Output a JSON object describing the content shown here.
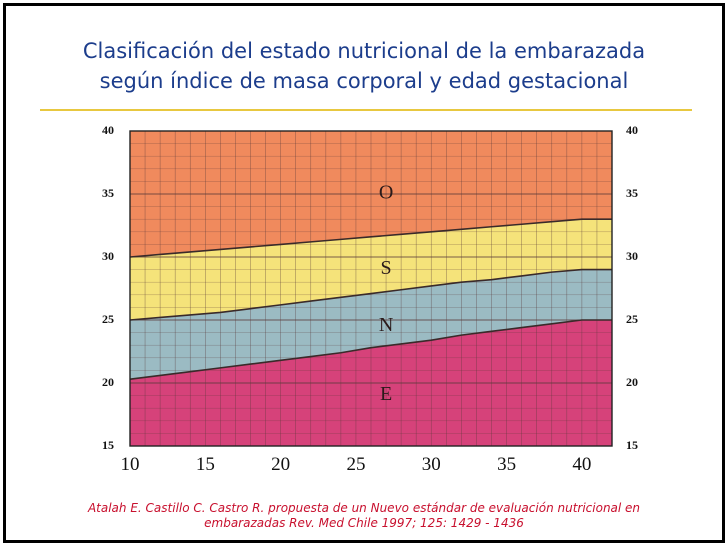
{
  "slide": {
    "title_line1": "Clasificación del estado nutricional de la embarazada",
    "title_line2": "según índice de masa corporal y edad gestacional",
    "citation_line1": "Atalah E. Castillo C. Castro R. propuesta de un Nuevo estándar de evaluación nutricional en",
    "citation_line2": "embarazadas Rev. Med Chile 1997; 125: 1429 - 1436"
  },
  "colors": {
    "title": "#1c3d8c",
    "citation": "#c8102e",
    "rule": "#e8c840",
    "zone_O": "#f08a5d",
    "zone_S": "#f5e37a",
    "zone_N": "#9bbbc3",
    "zone_E": "#d6427a"
  },
  "chart_data": {
    "type": "area",
    "x": [
      10,
      12,
      14,
      16,
      18,
      20,
      22,
      24,
      26,
      28,
      30,
      32,
      34,
      36,
      38,
      40,
      42
    ],
    "xlim": [
      10,
      42
    ],
    "ylim": [
      15,
      40
    ],
    "x_ticks": [
      "10",
      "15",
      "20",
      "25",
      "30",
      "35",
      "40"
    ],
    "y_ticks": [
      "15",
      "20",
      "25",
      "30",
      "35",
      "40"
    ],
    "grid": true,
    "boundaries": [
      {
        "between": "E-N",
        "values": [
          20.3,
          20.6,
          20.9,
          21.2,
          21.5,
          21.8,
          22.1,
          22.4,
          22.8,
          23.1,
          23.4,
          23.8,
          24.1,
          24.4,
          24.7,
          25.0,
          25.0
        ]
      },
      {
        "between": "N-S",
        "values": [
          25.0,
          25.2,
          25.4,
          25.6,
          25.9,
          26.2,
          26.5,
          26.8,
          27.1,
          27.4,
          27.7,
          28.0,
          28.2,
          28.5,
          28.8,
          29.0,
          29.0
        ]
      },
      {
        "between": "S-O",
        "values": [
          30.0,
          30.2,
          30.4,
          30.6,
          30.8,
          31.0,
          31.2,
          31.4,
          31.6,
          31.8,
          32.0,
          32.2,
          32.4,
          32.6,
          32.8,
          33.0,
          33.0
        ]
      }
    ],
    "zones": [
      {
        "label": "O",
        "color": "#f08a5d",
        "label_x": 27,
        "label_y": 35
      },
      {
        "label": "S",
        "color": "#f5e37a",
        "label_x": 27,
        "label_y": 29
      },
      {
        "label": "N",
        "color": "#9bbbc3",
        "label_x": 27,
        "label_y": 24.5
      },
      {
        "label": "E",
        "color": "#d6427a",
        "label_x": 27,
        "label_y": 19
      }
    ]
  }
}
